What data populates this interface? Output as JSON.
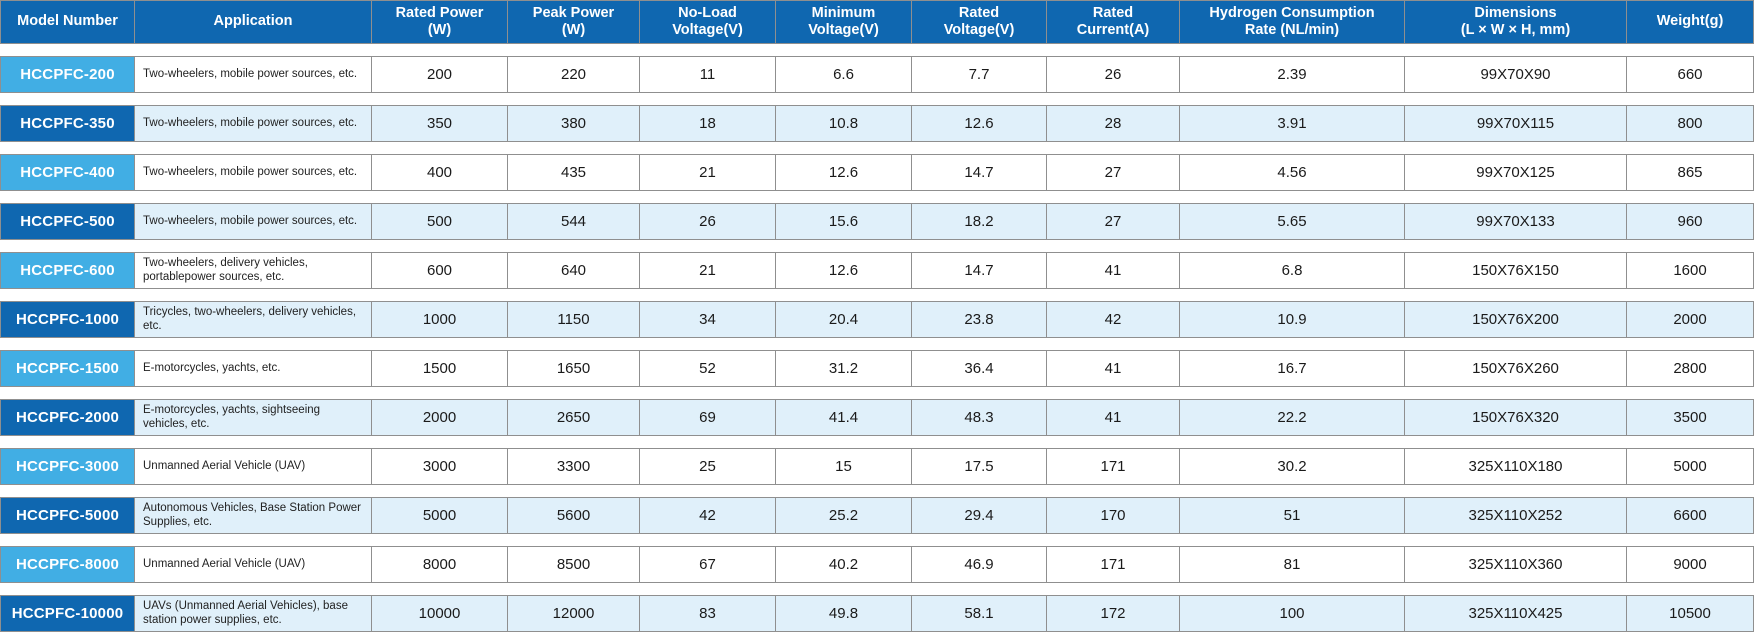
{
  "colors": {
    "header_bg": "#0f67b0",
    "model_cell_light_blue": "#41aee4",
    "model_cell_dark_blue": "#0f67b0",
    "row_alt_bg": "#e0f0fa",
    "border_gray": "#8f8f8f"
  },
  "table": {
    "columns": [
      "Model Number",
      "Application",
      "Rated Power\n(W)",
      "Peak Power\n(W)",
      "No-Load\nVoltage(V)",
      "Minimum\nVoltage(V)",
      "Rated\nVoltage(V)",
      "Rated\nCurrent(A)",
      "Hydrogen Consumption\nRate (NL/min)",
      "Dimensions\n(L × W × H, mm)",
      "Weight(g)"
    ],
    "rows": [
      {
        "model": "HCCPFC-200",
        "application": "Two-wheelers, mobile power sources, etc.",
        "values": [
          "200",
          "220",
          "11",
          "6.6",
          "7.7",
          "26",
          "2.39",
          "99X70X90",
          "660"
        ]
      },
      {
        "model": "HCCPFC-350",
        "application": "Two-wheelers, mobile power sources, etc.",
        "values": [
          "350",
          "380",
          "18",
          "10.8",
          "12.6",
          "28",
          "3.91",
          "99X70X115",
          "800"
        ]
      },
      {
        "model": "HCCPFC-400",
        "application": "Two-wheelers, mobile power sources, etc.",
        "values": [
          "400",
          "435",
          "21",
          "12.6",
          "14.7",
          "27",
          "4.56",
          "99X70X125",
          "865"
        ]
      },
      {
        "model": "HCCPFC-500",
        "application": "Two-wheelers, mobile power sources, etc.",
        "values": [
          "500",
          "544",
          "26",
          "15.6",
          "18.2",
          "27",
          "5.65",
          "99X70X133",
          "960"
        ]
      },
      {
        "model": "HCCPFC-600",
        "application": "Two-wheelers, delivery vehicles, portablepower sources, etc.",
        "values": [
          "600",
          "640",
          "21",
          "12.6",
          "14.7",
          "41",
          "6.8",
          "150X76X150",
          "1600"
        ]
      },
      {
        "model": "HCCPFC-1000",
        "application": "Tricycles, two-wheelers, delivery vehicles, etc.",
        "values": [
          "1000",
          "1150",
          "34",
          "20.4",
          "23.8",
          "42",
          "10.9",
          "150X76X200",
          "2000"
        ]
      },
      {
        "model": "HCCPFC-1500",
        "application": "E-motorcycles, yachts, etc.",
        "values": [
          "1500",
          "1650",
          "52",
          "31.2",
          "36.4",
          "41",
          "16.7",
          "150X76X260",
          "2800"
        ]
      },
      {
        "model": "HCCPFC-2000",
        "application": "E-motorcycles, yachts, sightseeing vehicles, etc.",
        "values": [
          "2000",
          "2650",
          "69",
          "41.4",
          "48.3",
          "41",
          "22.2",
          "150X76X320",
          "3500"
        ]
      },
      {
        "model": "HCCPFC-3000",
        "application": "Unmanned Aerial Vehicle (UAV)",
        "values": [
          "3000",
          "3300",
          "25",
          "15",
          "17.5",
          "171",
          "30.2",
          "325X110X180",
          "5000"
        ]
      },
      {
        "model": "HCCPFC-5000",
        "application": "Autonomous Vehicles, Base Station Power Supplies, etc.",
        "values": [
          "5000",
          "5600",
          "42",
          "25.2",
          "29.4",
          "170",
          "51",
          "325X110X252",
          "6600"
        ]
      },
      {
        "model": "HCCPFC-8000",
        "application": "Unmanned Aerial Vehicle (UAV)",
        "values": [
          "8000",
          "8500",
          "67",
          "40.2",
          "46.9",
          "171",
          "81",
          "325X110X360",
          "9000"
        ]
      },
      {
        "model": "HCCPFC-10000",
        "application": "UAVs (Unmanned Aerial Vehicles), base station power supplies, etc.",
        "values": [
          "10000",
          "12000",
          "83",
          "49.8",
          "58.1",
          "172",
          "100",
          "325X110X425",
          "10500"
        ]
      }
    ]
  }
}
